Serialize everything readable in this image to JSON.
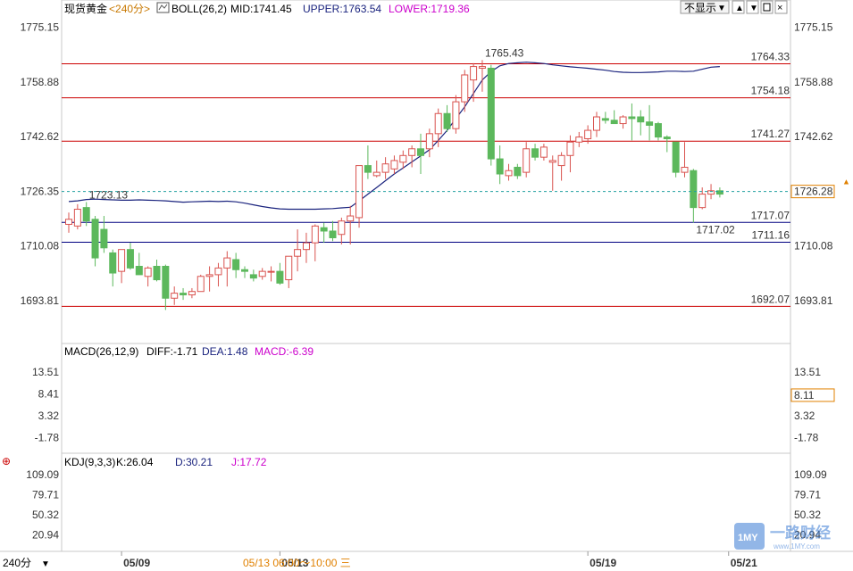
{
  "instrument": "现货黄金",
  "period": "240分",
  "period_button": "240分",
  "hide_button": "不显示",
  "info_bar": "05/13 06:00～10:00 三",
  "watermark": {
    "text": "一路财经",
    "logo_text": "1MY",
    "url": "www.1MY.com"
  },
  "colors": {
    "up": "#d9534f",
    "down": "#5cb85c",
    "boll_band": "#1a237e",
    "boll_lower": "#e600e6",
    "boll_mid": "#000000",
    "level_line": "#cc0000",
    "support_line": "#000080",
    "macd_diff": "#000000",
    "macd_dea": "#1a237e",
    "kdj_j": "#e600e6"
  },
  "chart_data": [
    {
      "type": "candlestick",
      "indicator": {
        "name": "BOLL(26,2)",
        "mid_label": "MID:1741.45",
        "upper_label": "UPPER:1763.54",
        "lower_label": "LOWER:1719.36"
      },
      "ylim": [
        1685,
        1778
      ],
      "y_ticks": [
        1775.15,
        1758.88,
        1742.62,
        1726.35,
        1710.08,
        1693.81
      ],
      "x_ticks": [
        {
          "index": 6,
          "label": "05/09"
        },
        {
          "index": 24,
          "label": "05/13"
        },
        {
          "index": 59,
          "label": "05/19"
        },
        {
          "index": 75,
          "label": "05/21"
        }
      ],
      "last_price": 1726.28,
      "candles": [
        {
          "o": 1716.5,
          "h": 1720.0,
          "l": 1714.0,
          "c": 1718.0
        },
        {
          "o": 1716.0,
          "h": 1722.5,
          "l": 1715.0,
          "c": 1721.0
        },
        {
          "o": 1721.5,
          "h": 1723.13,
          "l": 1716.0,
          "c": 1717.5
        },
        {
          "o": 1718.0,
          "h": 1719.0,
          "l": 1704.0,
          "c": 1706.5
        },
        {
          "o": 1715.0,
          "h": 1719.0,
          "l": 1708.0,
          "c": 1709.5
        },
        {
          "o": 1708.0,
          "h": 1709.0,
          "l": 1698.0,
          "c": 1702.0
        },
        {
          "o": 1702.5,
          "h": 1709.0,
          "l": 1699.0,
          "c": 1709.0
        },
        {
          "o": 1709.0,
          "h": 1711.0,
          "l": 1703.0,
          "c": 1703.5
        },
        {
          "o": 1704.0,
          "h": 1708.0,
          "l": 1701.5,
          "c": 1701.5
        },
        {
          "o": 1701.0,
          "h": 1704.0,
          "l": 1698.0,
          "c": 1703.5
        },
        {
          "o": 1704.0,
          "h": 1706.0,
          "l": 1699.5,
          "c": 1700.0
        },
        {
          "o": 1704.0,
          "h": 1704.5,
          "l": 1691.0,
          "c": 1694.5
        },
        {
          "o": 1694.5,
          "h": 1698.0,
          "l": 1692.5,
          "c": 1696.0
        },
        {
          "o": 1696.0,
          "h": 1697.5,
          "l": 1694.0,
          "c": 1695.5
        },
        {
          "o": 1695.5,
          "h": 1697.5,
          "l": 1694.5,
          "c": 1696.5
        },
        {
          "o": 1696.5,
          "h": 1701.5,
          "l": 1696.5,
          "c": 1701.0
        },
        {
          "o": 1701.0,
          "h": 1704.0,
          "l": 1696.5,
          "c": 1701.5
        },
        {
          "o": 1701.5,
          "h": 1705.0,
          "l": 1698.0,
          "c": 1703.5
        },
        {
          "o": 1703.5,
          "h": 1708.5,
          "l": 1698.0,
          "c": 1706.5
        },
        {
          "o": 1706.0,
          "h": 1708.0,
          "l": 1700.5,
          "c": 1703.0
        },
        {
          "o": 1703.0,
          "h": 1704.0,
          "l": 1700.5,
          "c": 1702.5
        },
        {
          "o": 1701.5,
          "h": 1703.0,
          "l": 1699.5,
          "c": 1700.5
        },
        {
          "o": 1701.0,
          "h": 1703.5,
          "l": 1700.0,
          "c": 1702.5
        },
        {
          "o": 1702.5,
          "h": 1704.0,
          "l": 1699.5,
          "c": 1702.5
        },
        {
          "o": 1702.5,
          "h": 1705.0,
          "l": 1698.5,
          "c": 1699.0
        },
        {
          "o": 1700.0,
          "h": 1707.0,
          "l": 1697.5,
          "c": 1707.0
        },
        {
          "o": 1707.0,
          "h": 1715.0,
          "l": 1702.5,
          "c": 1709.0
        },
        {
          "o": 1709.0,
          "h": 1714.0,
          "l": 1705.0,
          "c": 1711.0
        },
        {
          "o": 1711.0,
          "h": 1716.5,
          "l": 1705.5,
          "c": 1716.0
        },
        {
          "o": 1715.5,
          "h": 1717.0,
          "l": 1711.0,
          "c": 1714.5
        },
        {
          "o": 1714.5,
          "h": 1717.5,
          "l": 1711.5,
          "c": 1712.5
        },
        {
          "o": 1713.5,
          "h": 1718.5,
          "l": 1710.5,
          "c": 1717.5
        },
        {
          "o": 1717.5,
          "h": 1722.0,
          "l": 1710.5,
          "c": 1719.0
        },
        {
          "o": 1718.5,
          "h": 1734.0,
          "l": 1715.5,
          "c": 1734.0
        },
        {
          "o": 1734.0,
          "h": 1740.0,
          "l": 1730.0,
          "c": 1732.0
        },
        {
          "o": 1731.0,
          "h": 1735.5,
          "l": 1730.5,
          "c": 1732.0
        },
        {
          "o": 1732.0,
          "h": 1736.5,
          "l": 1730.0,
          "c": 1734.5
        },
        {
          "o": 1733.0,
          "h": 1737.0,
          "l": 1731.5,
          "c": 1735.5
        },
        {
          "o": 1735.0,
          "h": 1738.5,
          "l": 1733.0,
          "c": 1737.0
        },
        {
          "o": 1737.0,
          "h": 1740.0,
          "l": 1733.5,
          "c": 1739.0
        },
        {
          "o": 1739.0,
          "h": 1743.5,
          "l": 1731.5,
          "c": 1737.0
        },
        {
          "o": 1739.0,
          "h": 1745.0,
          "l": 1736.5,
          "c": 1743.5
        },
        {
          "o": 1743.5,
          "h": 1751.0,
          "l": 1739.5,
          "c": 1749.5
        },
        {
          "o": 1749.5,
          "h": 1752.0,
          "l": 1744.0,
          "c": 1745.0
        },
        {
          "o": 1745.0,
          "h": 1755.0,
          "l": 1743.5,
          "c": 1753.0
        },
        {
          "o": 1753.0,
          "h": 1762.5,
          "l": 1750.0,
          "c": 1761.0
        },
        {
          "o": 1759.5,
          "h": 1764.5,
          "l": 1753.0,
          "c": 1763.5
        },
        {
          "o": 1763.0,
          "h": 1765.43,
          "l": 1756.0,
          "c": 1763.5
        },
        {
          "o": 1763.0,
          "h": 1764.0,
          "l": 1734.0,
          "c": 1736.0
        },
        {
          "o": 1736.0,
          "h": 1740.0,
          "l": 1728.5,
          "c": 1731.5
        },
        {
          "o": 1731.0,
          "h": 1734.5,
          "l": 1729.5,
          "c": 1732.5
        },
        {
          "o": 1733.5,
          "h": 1734.5,
          "l": 1730.0,
          "c": 1731.0
        },
        {
          "o": 1732.0,
          "h": 1741.0,
          "l": 1730.5,
          "c": 1739.0
        },
        {
          "o": 1739.0,
          "h": 1740.5,
          "l": 1735.5,
          "c": 1736.5
        },
        {
          "o": 1736.5,
          "h": 1740.5,
          "l": 1735.5,
          "c": 1739.5
        },
        {
          "o": 1735.0,
          "h": 1737.0,
          "l": 1726.5,
          "c": 1735.5
        },
        {
          "o": 1734.0,
          "h": 1738.0,
          "l": 1729.5,
          "c": 1737.0
        },
        {
          "o": 1737.0,
          "h": 1743.0,
          "l": 1732.0,
          "c": 1741.0
        },
        {
          "o": 1741.0,
          "h": 1744.0,
          "l": 1739.5,
          "c": 1742.5
        },
        {
          "o": 1742.0,
          "h": 1746.0,
          "l": 1740.5,
          "c": 1744.5
        },
        {
          "o": 1744.5,
          "h": 1750.0,
          "l": 1742.5,
          "c": 1748.5
        },
        {
          "o": 1748.0,
          "h": 1750.0,
          "l": 1746.5,
          "c": 1747.5
        },
        {
          "o": 1747.5,
          "h": 1750.5,
          "l": 1746.5,
          "c": 1746.5
        },
        {
          "o": 1746.5,
          "h": 1749.0,
          "l": 1745.0,
          "c": 1748.5
        },
        {
          "o": 1748.5,
          "h": 1752.5,
          "l": 1741.5,
          "c": 1748.0
        },
        {
          "o": 1748.5,
          "h": 1750.5,
          "l": 1743.0,
          "c": 1747.0
        },
        {
          "o": 1747.0,
          "h": 1752.0,
          "l": 1741.5,
          "c": 1746.0
        },
        {
          "o": 1746.5,
          "h": 1747.0,
          "l": 1741.5,
          "c": 1742.5
        },
        {
          "o": 1742.5,
          "h": 1743.0,
          "l": 1738.0,
          "c": 1742.0
        },
        {
          "o": 1741.0,
          "h": 1741.0,
          "l": 1730.5,
          "c": 1732.0
        },
        {
          "o": 1732.0,
          "h": 1741.0,
          "l": 1730.5,
          "c": 1733.5
        },
        {
          "o": 1732.5,
          "h": 1733.0,
          "l": 1717.02,
          "c": 1721.5
        },
        {
          "o": 1721.5,
          "h": 1727.5,
          "l": 1721.0,
          "c": 1725.5
        },
        {
          "o": 1725.5,
          "h": 1728.5,
          "l": 1724.0,
          "c": 1726.5
        },
        {
          "o": 1726.5,
          "h": 1727.5,
          "l": 1724.5,
          "c": 1725.5
        }
      ],
      "boll": {
        "upper": [
          1723.3,
          1723.5,
          1723.9,
          1724.0,
          1723.9,
          1723.8,
          1723.7,
          1723.7,
          1723.8,
          1723.7,
          1723.6,
          1723.5,
          1723.3,
          1723.1,
          1723.2,
          1723.3,
          1723.4,
          1723.3,
          1723.4,
          1723.2,
          1722.8,
          1722.3,
          1721.8,
          1721.4,
          1721.1,
          1721.0,
          1721.0,
          1721.0,
          1721.0,
          1721.1,
          1721.2,
          1721.4,
          1721.6,
          1723.5,
          1725.5,
          1727.5,
          1729.5,
          1731.5,
          1733.3,
          1735.1,
          1736.9,
          1738.7,
          1741.5,
          1744.5,
          1748.0,
          1751.5,
          1755.5,
          1759.5,
          1762.0,
          1763.7,
          1764.4,
          1764.6,
          1764.8,
          1764.6,
          1764.4,
          1764.0,
          1763.7,
          1763.4,
          1763.2,
          1763.0,
          1762.7,
          1762.4,
          1762.0,
          1761.8,
          1761.7,
          1761.7,
          1761.8,
          1761.9,
          1762.1,
          1762.1,
          1762.0,
          1762.1,
          1762.7,
          1763.3,
          1763.5
        ]
      },
      "reference_lines": [
        {
          "label": "1764.33",
          "value": 1764.33,
          "color": "#cc0000"
        },
        {
          "label": "1754.18",
          "value": 1754.18,
          "color": "#cc0000"
        },
        {
          "label": "1741.27",
          "value": 1741.27,
          "color": "#cc0000"
        },
        {
          "label": "1717.07",
          "value": 1717.07,
          "color": "#000080"
        },
        {
          "label": "1711.16",
          "value": 1711.16,
          "color": "#000080"
        },
        {
          "label": "1692.07",
          "value": 1692.07,
          "color": "#cc0000"
        }
      ],
      "annotations": [
        {
          "label": "1723.13",
          "index": 2,
          "value": 1723.13,
          "color": "#cc0000"
        },
        {
          "label": "1765.43",
          "index": 47,
          "value": 1765.43,
          "color": "#cc0000"
        },
        {
          "label": "1717.02",
          "index": 71,
          "value": 1717.02,
          "color": "#5cb85c"
        }
      ]
    },
    {
      "type": "bar+line",
      "indicator": {
        "name": "MACD(26,12,9)",
        "diff_label": "DIFF:-1.71",
        "dea_label": "DEA:1.48",
        "macd_label": "MACD:-6.39"
      },
      "ylim": [
        -4.8,
        16
      ],
      "y_ticks": [
        13.51,
        8.41,
        3.32,
        -1.78
      ],
      "last_value": 8.11
    },
    {
      "type": "line",
      "indicator": {
        "name": "KDJ(9,3,3)",
        "k_label": "K:26.04",
        "d_label": "D:30.21",
        "j_label": "J:17.72"
      },
      "ylim": [
        5,
        118
      ],
      "y_ticks": [
        109.09,
        79.71,
        50.32,
        20.94
      ]
    }
  ]
}
